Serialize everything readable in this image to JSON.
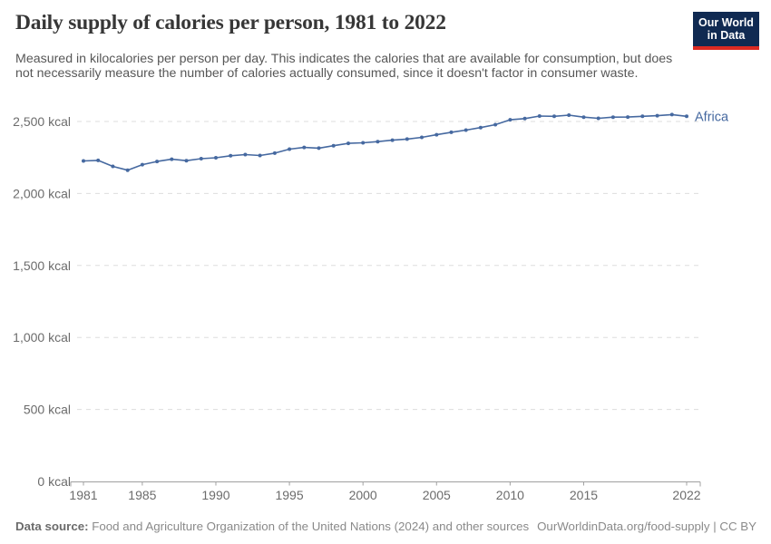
{
  "header": {
    "title": "Daily supply of calories per person, 1981 to 2022",
    "subtitle": "Measured in kilocalories per person per day. This indicates the calories that are available for consumption, but does not necessarily measure the number of calories actually consumed, since it doesn't factor in consumer waste."
  },
  "logo": {
    "line1": "Our World",
    "line2": "in Data"
  },
  "chart_data": {
    "type": "line",
    "title": "Daily supply of calories per person, 1981 to 2022",
    "xlabel": "",
    "ylabel": "kcal",
    "unit": "kcal",
    "ylim": [
      0,
      2500
    ],
    "grid": "horizontal-dashed",
    "legend": "end-of-line-label",
    "x": [
      1981,
      1982,
      1983,
      1984,
      1985,
      1986,
      1987,
      1988,
      1989,
      1990,
      1991,
      1992,
      1993,
      1994,
      1995,
      1996,
      1997,
      1998,
      1999,
      2000,
      2001,
      2002,
      2003,
      2004,
      2005,
      2006,
      2007,
      2008,
      2009,
      2010,
      2011,
      2012,
      2013,
      2014,
      2015,
      2016,
      2017,
      2018,
      2019,
      2020,
      2021,
      2022
    ],
    "series": [
      {
        "name": "Africa",
        "color": "#4669a0",
        "values": [
          2226,
          2230,
          2188,
          2162,
          2200,
          2222,
          2238,
          2228,
          2242,
          2248,
          2262,
          2270,
          2264,
          2280,
          2308,
          2320,
          2315,
          2332,
          2348,
          2352,
          2360,
          2370,
          2378,
          2390,
          2408,
          2425,
          2440,
          2458,
          2478,
          2512,
          2520,
          2538,
          2536,
          2544,
          2530,
          2522,
          2530,
          2531,
          2536,
          2540,
          2548,
          2536
        ]
      }
    ],
    "y_ticks": [
      {
        "value": 0,
        "label": "0 kcal"
      },
      {
        "value": 500,
        "label": "500 kcal"
      },
      {
        "value": 1000,
        "label": "1,000 kcal"
      },
      {
        "value": 1500,
        "label": "1,500 kcal"
      },
      {
        "value": 2000,
        "label": "2,000 kcal"
      },
      {
        "value": 2500,
        "label": "2,500 kcal"
      }
    ],
    "x_ticks": [
      1981,
      1985,
      1990,
      1995,
      2000,
      2005,
      2010,
      2015,
      2022
    ]
  },
  "footer": {
    "source_label": "Data source:",
    "source_text": " Food and Agriculture Organization of the United Nations (2024) and other sources",
    "link_text": "OurWorldinData.org/food-supply | CC BY"
  },
  "colors": {
    "line": "#4669a0",
    "gridline": "#dddddd",
    "axis": "#a0a0a0",
    "tick_text": "#6c6c6c",
    "title_text": "#373737",
    "subtitle_text": "#575757",
    "footer_text": "#8a8a8a",
    "logo_background": "#102a52",
    "logo_stripe": "#dc2a22"
  }
}
